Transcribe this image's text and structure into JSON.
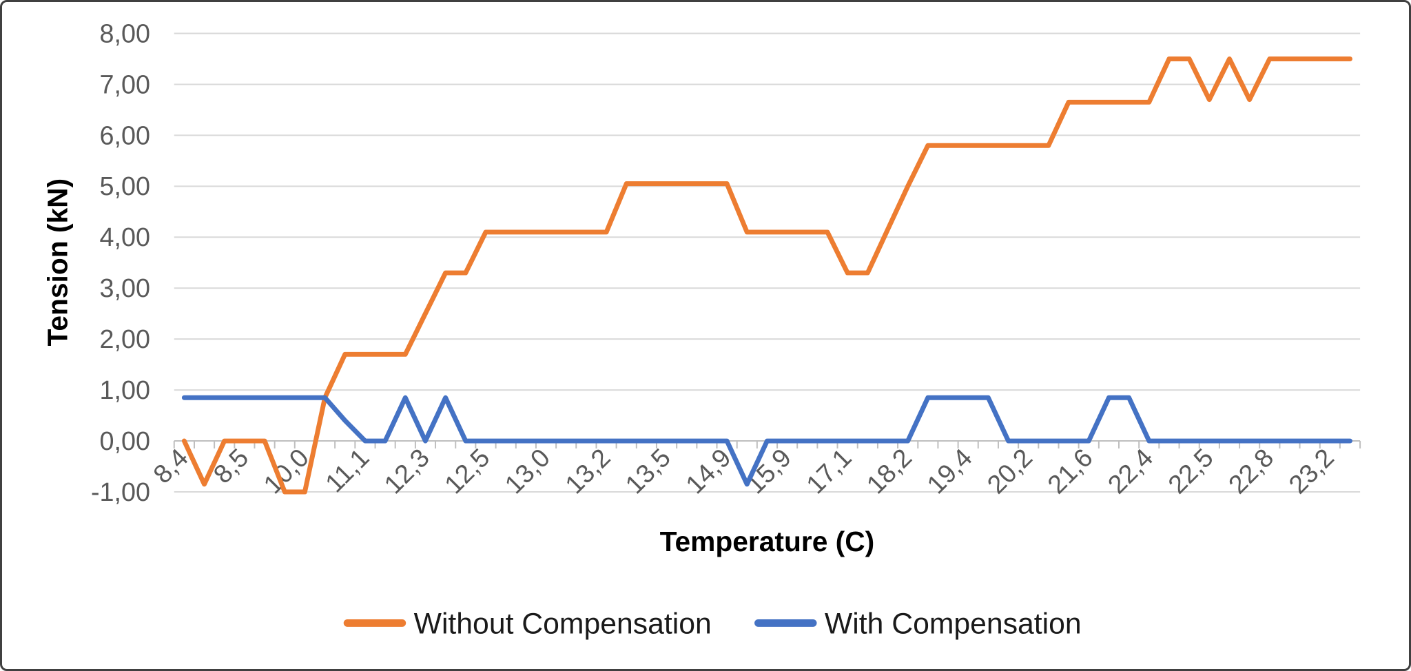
{
  "chart_data": {
    "type": "line",
    "title": "",
    "xlabel": "Temperature (C)",
    "ylabel": "Tension (kN)",
    "ylim": [
      -1,
      8
    ],
    "ytick_step": 1,
    "ytick_labels": [
      "8,00",
      "7,00",
      "6,00",
      "5,00",
      "4,00",
      "3,00",
      "2,00",
      "1,00",
      "0,00",
      "-1,00"
    ],
    "grid": true,
    "legend_position": "bottom",
    "categories": [
      "8,4",
      "",
      "",
      "8,5",
      "",
      "",
      "10,0",
      "",
      "",
      "11,1",
      "",
      "",
      "12,3",
      "",
      "",
      "12,5",
      "",
      "",
      "13,0",
      "",
      "",
      "13,2",
      "",
      "",
      "13,5",
      "",
      "",
      "14,9",
      "",
      "",
      "15,9",
      "",
      "",
      "17,1",
      "",
      "",
      "18,2",
      "",
      "",
      "19,4",
      "",
      "",
      "20,2",
      "",
      "",
      "21,6",
      "",
      "",
      "22,4",
      "",
      "",
      "22,5",
      "",
      "",
      "22,8",
      "",
      "",
      "23,2",
      ""
    ],
    "series": [
      {
        "name": "Without Compensation",
        "color": "#ED7D31",
        "values": [
          0,
          -0.85,
          0,
          0,
          0,
          -1,
          -1,
          0.85,
          1.7,
          1.7,
          1.7,
          1.7,
          2.5,
          3.3,
          3.3,
          4.1,
          4.1,
          4.1,
          4.1,
          4.1,
          4.1,
          4.1,
          5.05,
          5.05,
          5.05,
          5.05,
          5.05,
          5.05,
          4.1,
          4.1,
          4.1,
          4.1,
          4.1,
          3.3,
          3.3,
          4.15,
          5.0,
          5.8,
          5.8,
          5.8,
          5.8,
          5.8,
          5.8,
          5.8,
          6.65,
          6.65,
          6.65,
          6.65,
          6.65,
          7.5,
          7.5,
          6.7,
          7.5,
          6.7,
          7.5,
          7.5,
          7.5,
          7.5,
          7.5
        ]
      },
      {
        "name": "With Compensation",
        "color": "#4472C4",
        "values": [
          0.85,
          0.85,
          0.85,
          0.85,
          0.85,
          0.85,
          0.85,
          0.85,
          0.4,
          0,
          0,
          0.85,
          0,
          0.85,
          0,
          0,
          0,
          0,
          0,
          0,
          0,
          0,
          0,
          0,
          0,
          0,
          0,
          0,
          -0.85,
          0,
          0,
          0,
          0,
          0,
          0,
          0,
          0,
          0.85,
          0.85,
          0.85,
          0.85,
          0,
          0,
          0,
          0,
          0,
          0.85,
          0.85,
          0,
          0,
          0,
          0,
          0,
          0,
          0,
          0,
          0,
          0,
          0
        ]
      }
    ]
  },
  "styles": {
    "background": "#FFFFFF",
    "border_color": "#404040",
    "gridline_color": "#D9D9D9",
    "axis_line_color": "#BFBFBF",
    "tick_label_color": "#595959",
    "axis_title_color": "#000000",
    "legend_text_color": "#1A1A1A"
  }
}
